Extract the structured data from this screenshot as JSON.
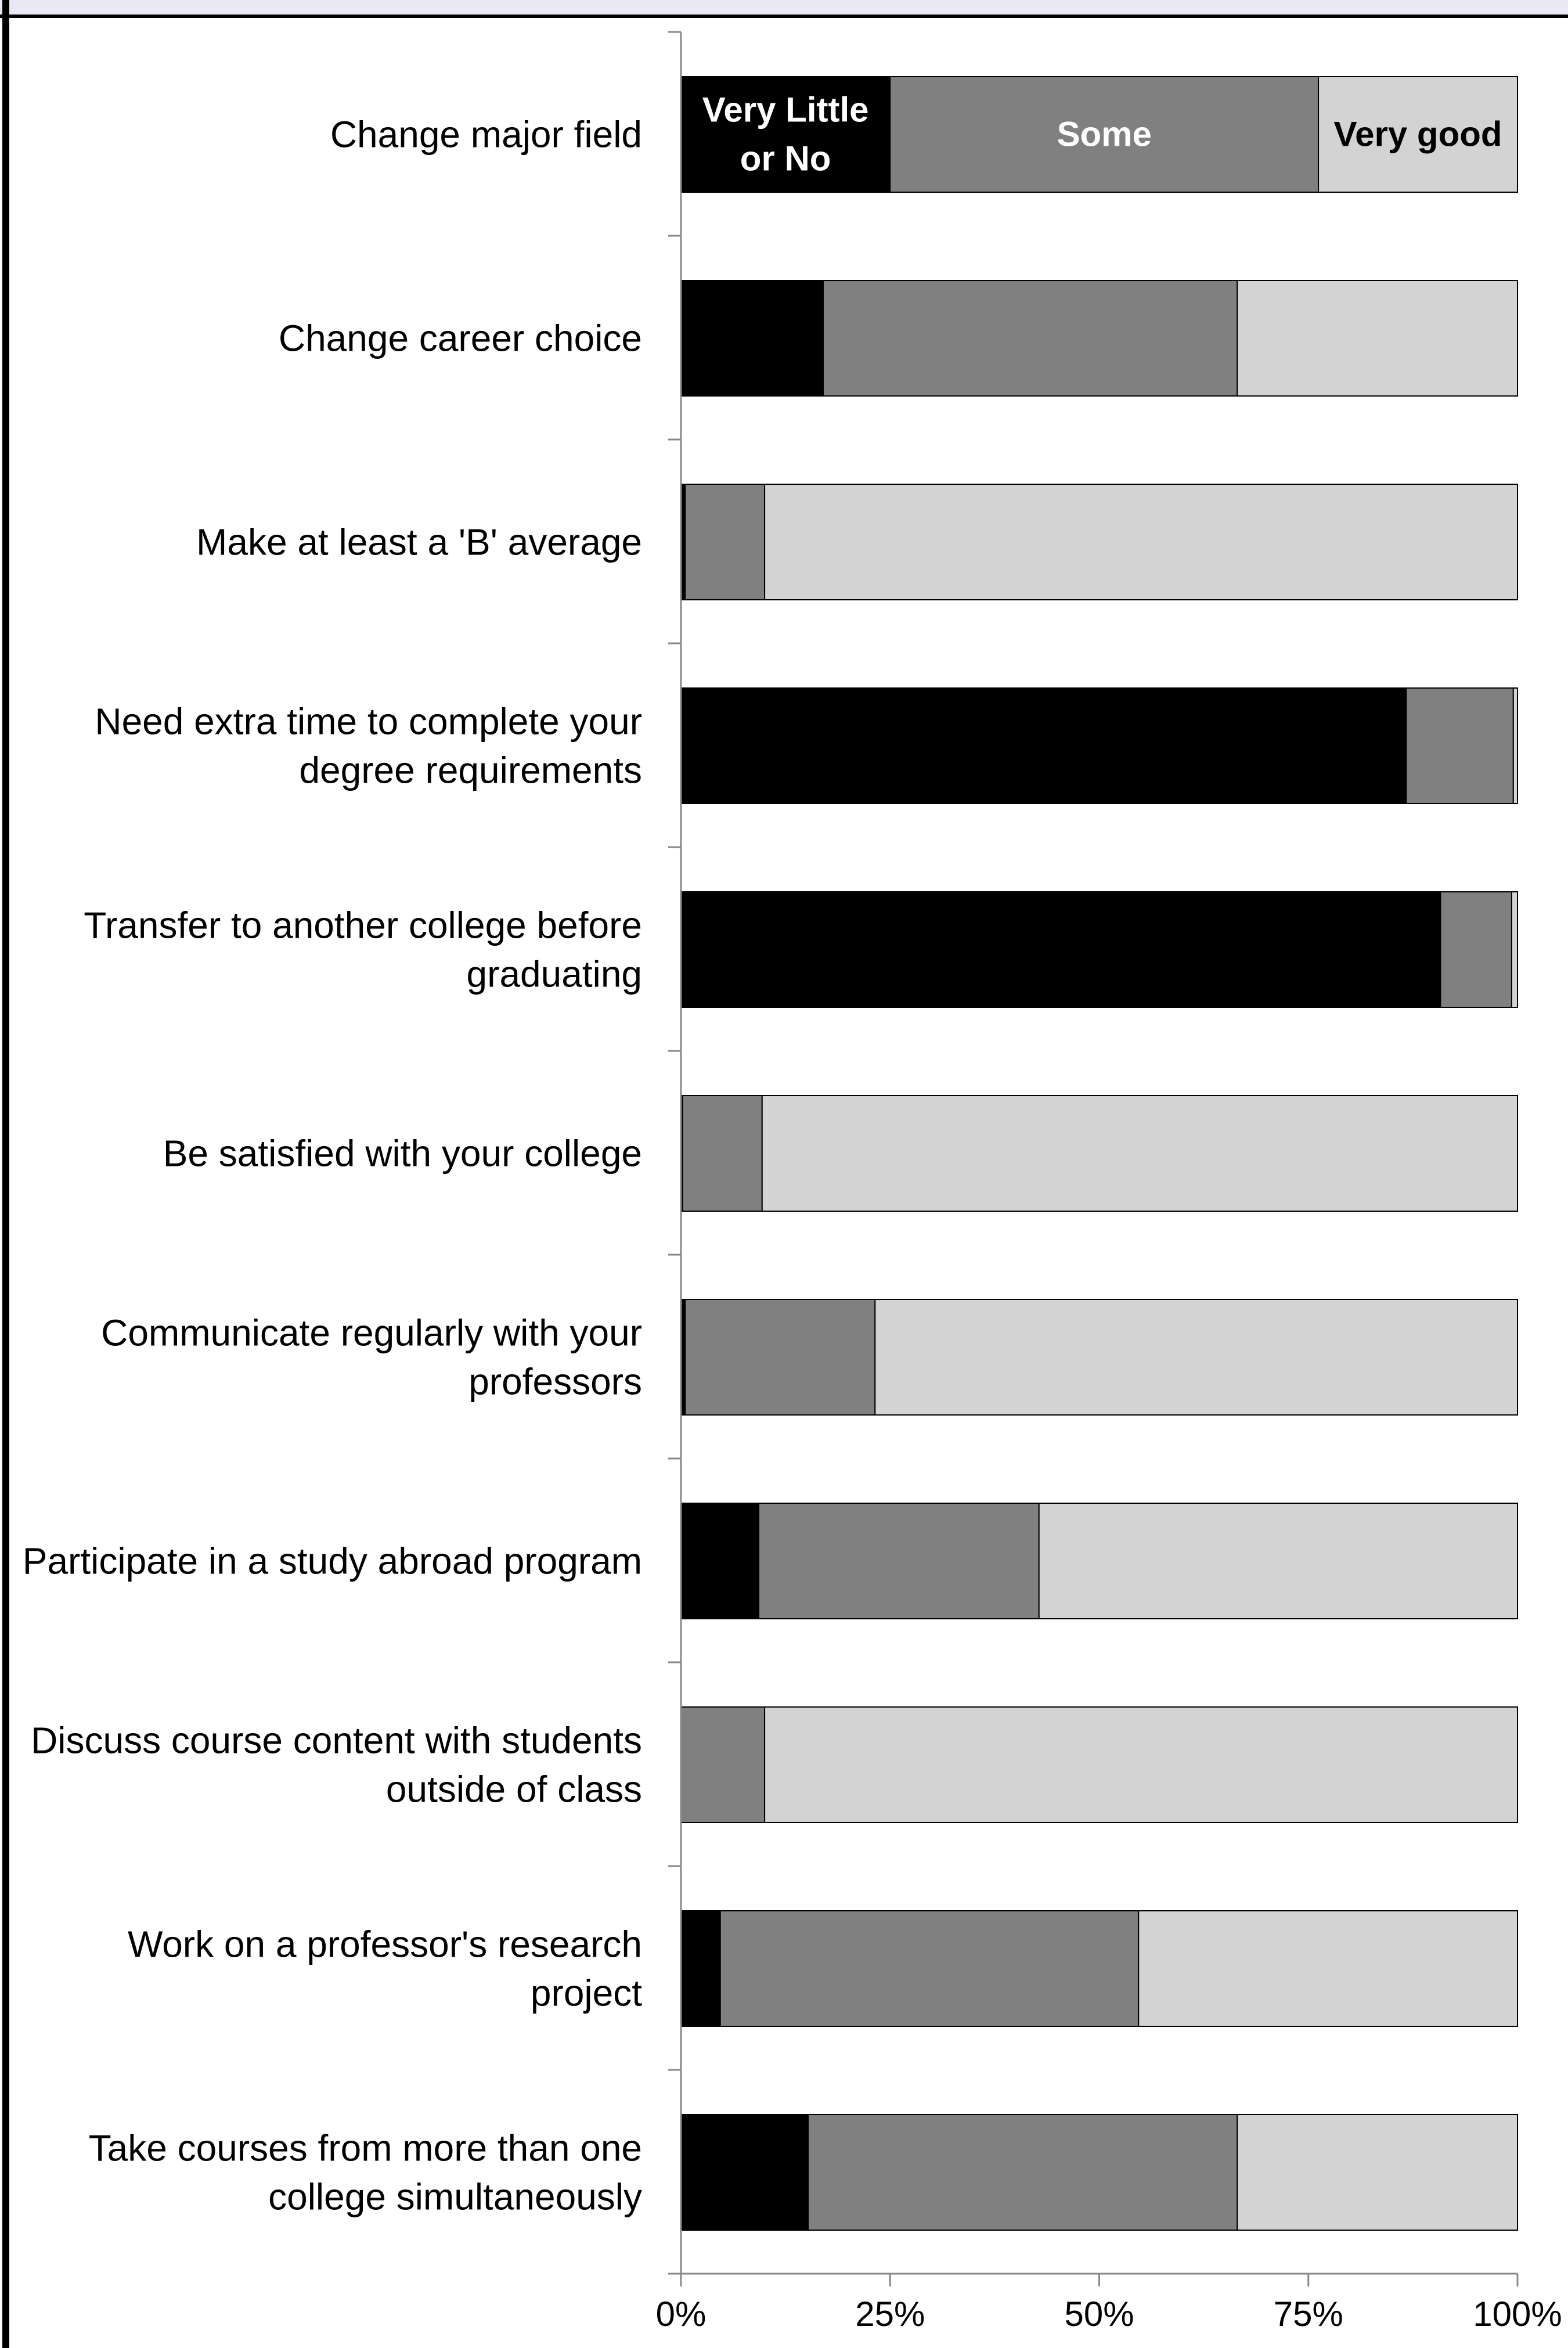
{
  "chart_data": {
    "type": "bar",
    "orientation": "horizontal",
    "stacked": true,
    "percent": true,
    "categories": [
      "Change major field",
      "Change career choice",
      "Make at least a 'B' average",
      "Need extra time to complete your degree requirements",
      "Transfer to another college before graduating",
      "Be satisfied with your college",
      "Communicate regularly with your professors",
      "Participate in a study abroad program",
      "Discuss course content with students outside of class",
      "Work on a professor's research project",
      "Take courses from more than one college simultaneously"
    ],
    "category_lines": [
      [
        "Change major field"
      ],
      [
        "Change career choice"
      ],
      [
        "Make at least a 'B' average"
      ],
      [
        "Need extra time to complete your",
        "degree requirements"
      ],
      [
        "Transfer to another college before",
        "graduating"
      ],
      [
        "Be satisfied with your college"
      ],
      [
        "Communicate regularly with your",
        "professors"
      ],
      [
        "Participate in a study abroad program"
      ],
      [
        "Discuss course content with students",
        "outside of class"
      ],
      [
        "Work on a professor's research",
        "project"
      ],
      [
        "Take courses from more than one",
        "college simultaneously"
      ]
    ],
    "series": [
      {
        "name": "Very Little or No",
        "label_lines": [
          "Very Little",
          "or No"
        ],
        "color": "#000000",
        "label_color": "#ffffff",
        "values": [
          25,
          17,
          0.5,
          86.7,
          90.8,
          0.2,
          0.5,
          9.3,
          0,
          4.7,
          15.2
        ]
      },
      {
        "name": "Some",
        "label_lines": [
          "Some"
        ],
        "color": "#808080",
        "label_color": "#ffffff",
        "values": [
          51.2,
          49.5,
          9.5,
          12.8,
          8.5,
          9.5,
          22.7,
          33.5,
          10,
          50,
          51.3
        ]
      },
      {
        "name": "Very good",
        "label_lines": [
          "Very good"
        ],
        "color": "#d3d3d3",
        "label_color": "#000000",
        "values": [
          23.8,
          33.5,
          90,
          0.5,
          0.7,
          90.3,
          76.8,
          57.2,
          90,
          45.3,
          33.5
        ]
      }
    ],
    "series_labels_on_row": 0,
    "x_ticks": [
      "0%",
      "25%",
      "50%",
      "75%",
      "100%"
    ],
    "xlim": [
      0,
      100
    ],
    "grid": false,
    "legend": "inline labels on first bar",
    "title": "",
    "xlabel": "",
    "ylabel": ""
  }
}
